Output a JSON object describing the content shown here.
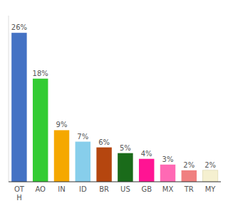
{
  "chart_data": {
    "type": "bar",
    "categories": [
      "OT\nH",
      "AO",
      "IN",
      "ID",
      "BR",
      "US",
      "GB",
      "MX",
      "TR",
      "MY"
    ],
    "values": [
      26,
      18,
      9,
      7,
      6,
      5,
      4,
      3,
      2,
      2
    ],
    "value_labels": [
      "26%",
      "18%",
      "9%",
      "7%",
      "6%",
      "5%",
      "4%",
      "3%",
      "2%",
      "2%"
    ],
    "colors": [
      "#4472c4",
      "#33cc33",
      "#f5a800",
      "#87ceeb",
      "#b5460f",
      "#1a6b1a",
      "#ff1493",
      "#ff69b4",
      "#f08080",
      "#f5f0d0"
    ],
    "ylim": [
      0,
      29
    ],
    "data_labels": true,
    "grid": false,
    "tick_labels": "x"
  }
}
